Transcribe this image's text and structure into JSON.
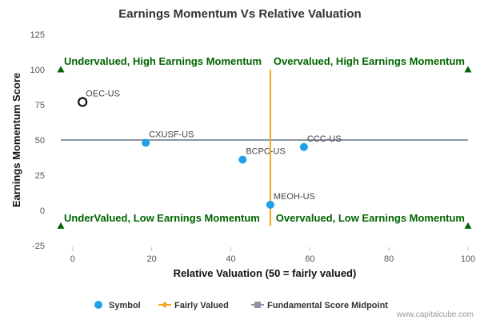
{
  "chart_data": {
    "type": "scatter",
    "title": "Earnings Momentum Vs Relative Valuation",
    "xlabel": "Relative Valuation (50 = fairly valued)",
    "ylabel": "Earnings Momentum Score",
    "xlim": [
      -3,
      100
    ],
    "ylim": [
      -25,
      125
    ],
    "x_ticks": [
      0,
      20,
      40,
      60,
      80,
      100
    ],
    "y_ticks": [
      -25,
      0,
      25,
      50,
      75,
      100,
      125
    ],
    "grid": false,
    "points": [
      {
        "name": "OEC-US",
        "x": 2.5,
        "y": 77,
        "highlight": true
      },
      {
        "name": "CXUSF-US",
        "x": 18.5,
        "y": 48
      },
      {
        "name": "BCPC-US",
        "x": 43,
        "y": 36
      },
      {
        "name": "CCC-US",
        "x": 58.5,
        "y": 45
      },
      {
        "name": "MEOH-US",
        "x": 50,
        "y": 4
      }
    ],
    "fairly_valued_line": {
      "x": 50,
      "y_range": [
        -11,
        100
      ]
    },
    "midpoint_line": {
      "y": 50
    },
    "quadrant_labels": [
      {
        "text": "Undervalued, High Earnings Momentum",
        "corner": "top-left"
      },
      {
        "text": "Overvalued, High Earnings Momentum",
        "corner": "top-right"
      },
      {
        "text": "UnderValued, Low Earnings Momentum",
        "corner": "bottom-left"
      },
      {
        "text": "Overvalued, Low Earnings Momentum",
        "corner": "bottom-right"
      }
    ],
    "corner_markers": [
      {
        "x": -3,
        "y": 100
      },
      {
        "x": 100,
        "y": 100
      },
      {
        "x": -3,
        "y": -11
      },
      {
        "x": 100,
        "y": -11
      }
    ],
    "legend": {
      "placement": "bottom",
      "items": [
        {
          "label": "Symbol",
          "color": "#1ea1e6",
          "shape": "circle"
        },
        {
          "label": "Fairly Valued",
          "color": "#f5a623",
          "shape": "line-diamond"
        },
        {
          "label": "Fundamental Score Midpoint",
          "color": "#8c96a5",
          "shape": "line-square"
        }
      ]
    },
    "colors": {
      "point": "#1ea1e6",
      "highlight_stroke": "#111111",
      "fairly_valued": "#f5a623",
      "midpoint": "#8c96a5",
      "quadrant_text": "#006400",
      "marker": "#006400"
    }
  },
  "credit": "www.capitalcube.com"
}
